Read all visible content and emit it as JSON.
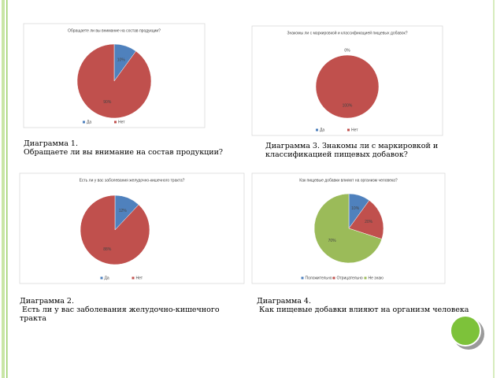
{
  "chart_data": [
    {
      "type": "pie",
      "title": "Обращаете ли вы внимание на состав продукции?",
      "categories": [
        "Да",
        "Нет"
      ],
      "values": [
        10,
        90
      ],
      "value_labels": [
        "10%",
        "90%"
      ],
      "colors": [
        "#4f81bd",
        "#c0504d"
      ]
    },
    {
      "type": "pie",
      "title": "Есть ли у вас заболевания желудочно-кишечного тракта?",
      "categories": [
        "Да",
        "Нет"
      ],
      "values": [
        12,
        88
      ],
      "value_labels": [
        "12%",
        "88%"
      ],
      "colors": [
        "#4f81bd",
        "#c0504d"
      ]
    },
    {
      "type": "pie",
      "title": "Знакомы ли с маркировкой и классификацией пищевых добавок?",
      "categories": [
        "Да",
        "Нет"
      ],
      "values": [
        0,
        100
      ],
      "value_labels": [
        "0%",
        "100%"
      ],
      "colors": [
        "#4f81bd",
        "#c0504d"
      ]
    },
    {
      "type": "pie",
      "title": "Как пищевые добавки влияют на организм человека?",
      "categories": [
        "Положительно",
        "Отрицательно",
        "Не знаю"
      ],
      "values": [
        10,
        20,
        70
      ],
      "value_labels": [
        "10%",
        "20%",
        "70%"
      ],
      "colors": [
        "#4f81bd",
        "#c0504d",
        "#9bbb59"
      ]
    }
  ],
  "captions": [
    [
      "Диаграмма 1.",
      "Обращаете ли вы внимание на состав продукции?"
    ],
    [
      "Диаграмма 2.",
      " Есть ли у вас заболевания желудочно-кишечного",
      "тракта"
    ],
    [
      "Диаграмма 3. Знакомы ли с маркировкой и",
      "классификацией пищевых добавок?"
    ],
    [
      "Диаграмма 4.",
      " Как пищевые добавки влияют на организм человека"
    ]
  ]
}
